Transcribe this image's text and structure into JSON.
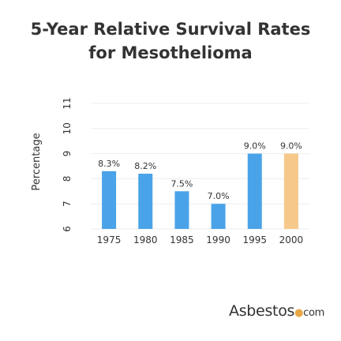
{
  "chart_data": {
    "type": "bar",
    "title_lines": [
      "5-Year Relative Survival Rates",
      "for Mesothelioma"
    ],
    "ylabel": "Percentage",
    "xlabel": "",
    "categories": [
      "1975",
      "1980",
      "1985",
      "1990",
      "1995",
      "2000"
    ],
    "values": [
      8.3,
      8.2,
      7.5,
      7.0,
      9.0,
      9.0
    ],
    "value_labels": [
      "8.3%",
      "8.2%",
      "7.5%",
      "7.0%",
      "9.0%",
      "9.0%"
    ],
    "ylim": [
      6,
      11
    ],
    "yticks": [
      "6",
      "7",
      "8",
      "9",
      "10",
      "11"
    ],
    "bar_colors": [
      "#4aa3e8",
      "#4aa3e8",
      "#4aa3e8",
      "#4aa3e8",
      "#4aa3e8",
      "#f6c889"
    ],
    "grid": true,
    "legend": "none"
  },
  "logo": {
    "brand": "Asbestos",
    "dot": "●",
    "suffix": "com"
  }
}
